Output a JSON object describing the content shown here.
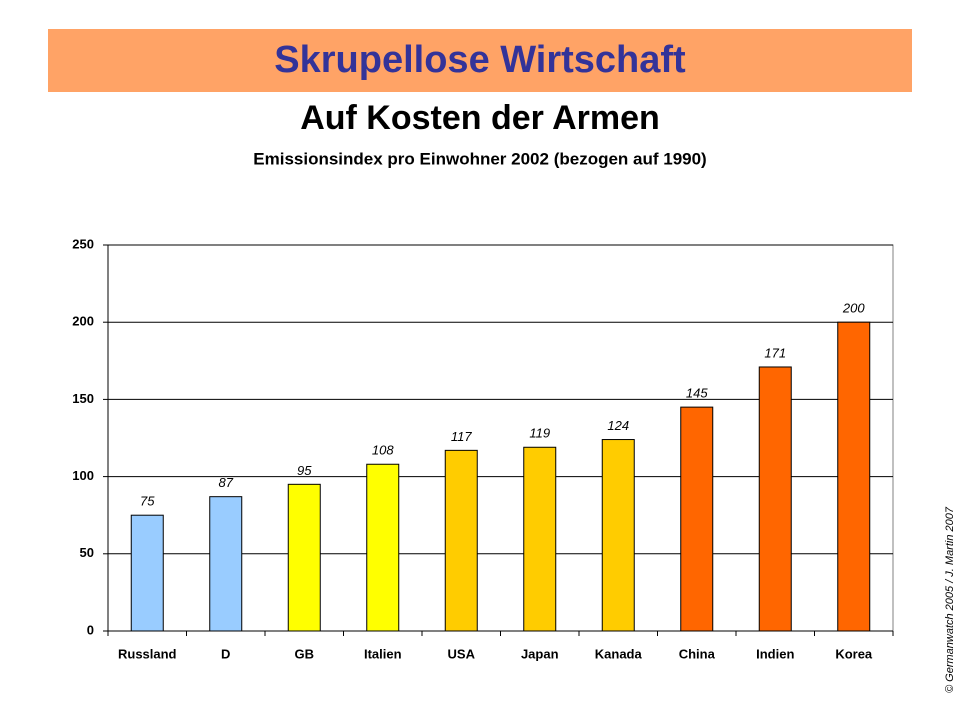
{
  "header": {
    "title": "Skrupellose Wirtschaft",
    "subtitle": "Auf Kosten der Armen"
  },
  "footer": {
    "copyright": "© Germanwatch 2005 / J. Martin 2007"
  },
  "chart_data": {
    "type": "bar",
    "title": "Emissionsindex pro Einwohner 2002 (bezogen auf 1990)",
    "categories": [
      "Russland",
      "D",
      "GB",
      "Italien",
      "USA",
      "Japan",
      "Kanada",
      "China",
      "Indien",
      "Korea"
    ],
    "values": [
      75,
      87,
      95,
      108,
      117,
      119,
      124,
      145,
      171,
      200
    ],
    "colors": [
      "#99ccff",
      "#99ccff",
      "#ffff00",
      "#ffff00",
      "#ffcc00",
      "#ffcc00",
      "#ffcc00",
      "#ff6600",
      "#ff6600",
      "#ff6600"
    ],
    "ylim": [
      0,
      250
    ],
    "yticks": [
      0,
      50,
      100,
      150,
      200,
      250
    ],
    "grid": true
  }
}
